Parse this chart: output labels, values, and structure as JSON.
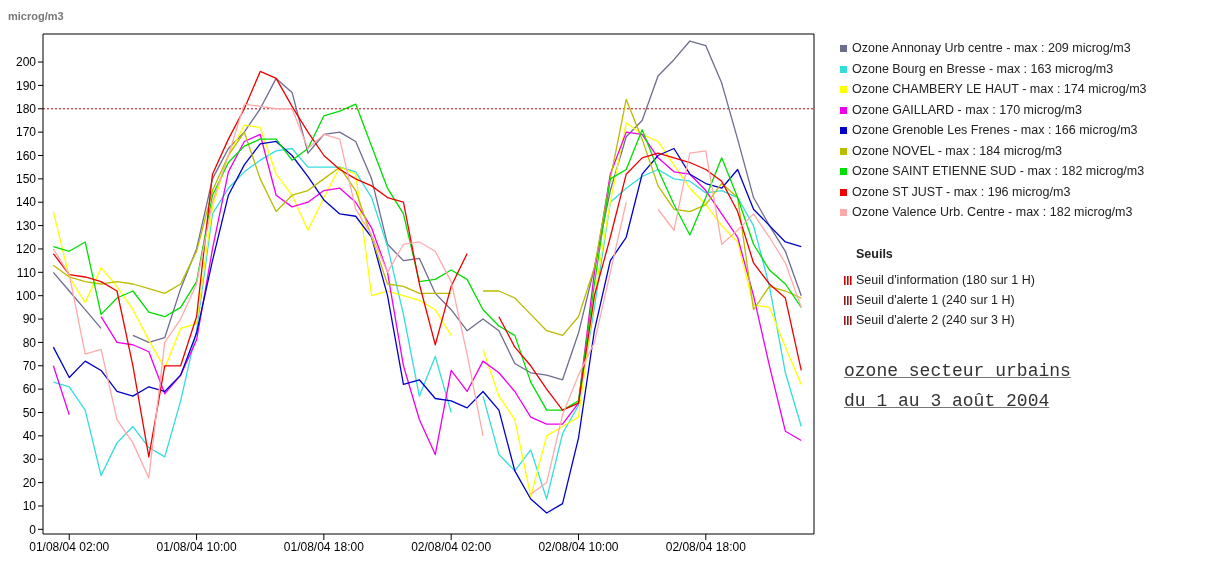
{
  "chart_data": {
    "type": "line",
    "title": "ozone secteur urbains",
    "subtitle": "du 1 au 3 août 2004",
    "ylabel": "microg/m3",
    "x": [
      "2004-08-01T01:00",
      "2004-08-01T02:00",
      "2004-08-01T03:00",
      "2004-08-01T04:00",
      "2004-08-01T05:00",
      "2004-08-01T06:00",
      "2004-08-01T07:00",
      "2004-08-01T08:00",
      "2004-08-01T09:00",
      "2004-08-01T10:00",
      "2004-08-01T11:00",
      "2004-08-01T12:00",
      "2004-08-01T13:00",
      "2004-08-01T14:00",
      "2004-08-01T15:00",
      "2004-08-01T16:00",
      "2004-08-01T17:00",
      "2004-08-01T18:00",
      "2004-08-01T19:00",
      "2004-08-01T20:00",
      "2004-08-01T21:00",
      "2004-08-01T22:00",
      "2004-08-01T23:00",
      "2004-08-02T00:00",
      "2004-08-02T01:00",
      "2004-08-02T02:00",
      "2004-08-02T03:00",
      "2004-08-02T04:00",
      "2004-08-02T05:00",
      "2004-08-02T06:00",
      "2004-08-02T07:00",
      "2004-08-02T08:00",
      "2004-08-02T09:00",
      "2004-08-02T10:00",
      "2004-08-02T11:00",
      "2004-08-02T12:00",
      "2004-08-02T13:00",
      "2004-08-02T14:00",
      "2004-08-02T15:00",
      "2004-08-02T16:00",
      "2004-08-02T17:00",
      "2004-08-02T18:00",
      "2004-08-02T19:00",
      "2004-08-02T20:00",
      "2004-08-02T21:00",
      "2004-08-02T22:00",
      "2004-08-02T23:00",
      "2004-08-03T00:00"
    ],
    "series": [
      {
        "name": "Ozone Annonay Urb centre - max : 209 microg/m3",
        "color": "#6d6d8f",
        "values": [
          110,
          102,
          94,
          86,
          null,
          83,
          80,
          82,
          103,
          120,
          150,
          163,
          170,
          180,
          193,
          187,
          161,
          169,
          170,
          166,
          150,
          122,
          115,
          116,
          101,
          94,
          85,
          90,
          85,
          71,
          67,
          66,
          64,
          84,
          112,
          145,
          168,
          175,
          194,
          201,
          209,
          207,
          191,
          167,
          142,
          130,
          119,
          100
        ]
      },
      {
        "name": "Ozone Bourg en Bresse - max : 163 microg/m3",
        "color": "#33dddd",
        "values": [
          63,
          61,
          51,
          23,
          37,
          44,
          35,
          31,
          55,
          85,
          135,
          146,
          153,
          158,
          162,
          163,
          155,
          155,
          155,
          153,
          142,
          121,
          92,
          57,
          74,
          50,
          null,
          57,
          32,
          25,
          34,
          13,
          41,
          53,
          95,
          140,
          146,
          151,
          154,
          150,
          149,
          144,
          145,
          142,
          130,
          104,
          67,
          44
        ]
      },
      {
        "name": "Ozone CHAMBERY LE HAUT - max : 174 microg/m3",
        "color": "#ffff00",
        "values": [
          136,
          108,
          97,
          112,
          104,
          94,
          81,
          69,
          86,
          88,
          138,
          160,
          173,
          172,
          152,
          143,
          128,
          142,
          155,
          152,
          100,
          102,
          100,
          98,
          94,
          83,
          null,
          77,
          57,
          47,
          14,
          40,
          44,
          48,
          100,
          140,
          174,
          169,
          166,
          156,
          146,
          139,
          130,
          123,
          96,
          95,
          78,
          62
        ]
      },
      {
        "name": "Ozone GAILLARD - max : 170 microg/m3",
        "color": "#ee00ee",
        "values": [
          70,
          49,
          null,
          91,
          80,
          79,
          76,
          58,
          66,
          81,
          120,
          153,
          166,
          169,
          143,
          138,
          140,
          145,
          146,
          140,
          129,
          110,
          70,
          47,
          32,
          68,
          59,
          72,
          67,
          59,
          48,
          45,
          45,
          54,
          110,
          152,
          170,
          169,
          159,
          153,
          152,
          145,
          135,
          125,
          100,
          70,
          42,
          38
        ]
      },
      {
        "name": "Ozone Grenoble Les Frenes - max : 166 microg/m3",
        "color": "#0000cc",
        "values": [
          78,
          65,
          72,
          68,
          59,
          57,
          61,
          59,
          66,
          84,
          115,
          143,
          156,
          165,
          166,
          160,
          151,
          141,
          135,
          134,
          125,
          100,
          62,
          64,
          56,
          55,
          52,
          59,
          51,
          25,
          13,
          7,
          11,
          39,
          85,
          115,
          125,
          152,
          160,
          163,
          152,
          148,
          146,
          154,
          137,
          130,
          123,
          121
        ]
      },
      {
        "name": "Ozone NOVEL - max : 184 microg/m3",
        "color": "#bbbb00",
        "values": [
          113,
          108,
          106,
          105,
          106,
          105,
          103,
          101,
          105,
          119,
          145,
          160,
          170,
          150,
          136,
          143,
          145,
          150,
          155,
          145,
          125,
          105,
          104,
          101,
          101,
          101,
          null,
          102,
          102,
          99,
          92,
          85,
          83,
          91,
          112,
          150,
          184,
          167,
          147,
          137,
          136,
          139,
          148,
          142,
          94,
          104,
          102,
          99
        ]
      },
      {
        "name": "Ozone SAINT ETIENNE SUD - max : 182 microg/m3",
        "color": "#00dd00",
        "values": [
          121,
          119,
          123,
          92,
          99,
          102,
          93,
          91,
          95,
          106,
          143,
          157,
          164,
          167,
          167,
          158,
          163,
          177,
          179,
          182,
          164,
          146,
          135,
          106,
          107,
          111,
          107,
          94,
          87,
          83,
          63,
          51,
          51,
          55,
          105,
          150,
          154,
          171,
          154,
          139,
          126,
          142,
          159,
          142,
          122,
          111,
          105,
          95
        ]
      },
      {
        "name": "Ozone ST JUST - max : 196 microg/m3",
        "color": "#ee0000",
        "values": [
          118,
          109,
          108,
          106,
          102,
          70,
          31,
          70,
          70,
          91,
          152,
          167,
          180,
          196,
          193,
          181,
          170,
          160,
          154,
          150,
          147,
          142,
          140,
          105,
          79,
          104,
          118,
          null,
          91,
          78,
          70,
          60,
          51,
          54,
          100,
          125,
          152,
          159,
          161,
          159,
          157,
          154,
          149,
          136,
          114,
          105,
          99,
          68
        ]
      },
      {
        "name": "Ozone Valence Urb. Centre - max : 182 microg/m3",
        "color": "#ffaaaa",
        "values": [
          120,
          109,
          75,
          77,
          47,
          37,
          22,
          80,
          90,
          105,
          140,
          160,
          182,
          181,
          180,
          180,
          163,
          169,
          167,
          137,
          126,
          110,
          122,
          123,
          119,
          106,
          75,
          40,
          null,
          null,
          15,
          20,
          49,
          66,
          80,
          110,
          140,
          null,
          137,
          128,
          161,
          162,
          122,
          128,
          135,
          125,
          114,
          95
        ]
      }
    ],
    "xlim": [
      "2004-08-01T00:21",
      "2004-08-03T00:48"
    ],
    "xticks": [
      {
        "value": "2004-08-01T02:00",
        "label": "01/08/04 02:00"
      },
      {
        "value": "2004-08-01T10:00",
        "label": "01/08/04 10:00"
      },
      {
        "value": "2004-08-01T18:00",
        "label": "01/08/04 18:00"
      },
      {
        "value": "2004-08-02T02:00",
        "label": "02/08/04 02:00"
      },
      {
        "value": "2004-08-02T10:00",
        "label": "02/08/04 10:00"
      },
      {
        "value": "2004-08-02T18:00",
        "label": "02/08/04 18:00"
      }
    ],
    "ylim": [
      -2,
      212
    ],
    "yticks": [
      0,
      10,
      20,
      30,
      40,
      50,
      60,
      70,
      80,
      90,
      100,
      110,
      120,
      130,
      140,
      150,
      160,
      170,
      180,
      190,
      200
    ],
    "ref_lines": [
      {
        "axis": "y",
        "value": 180,
        "label": "Seuil d'information (180 sur 1 H)",
        "color": "#cc0000",
        "line_style": "dotted"
      }
    ],
    "annotations": [
      "Seuils",
      "Seuil d'alerte 1 (240 sur 1 H)",
      "Seuil d'alerte 2 (240 sur 3 H)"
    ],
    "legend": "right"
  }
}
